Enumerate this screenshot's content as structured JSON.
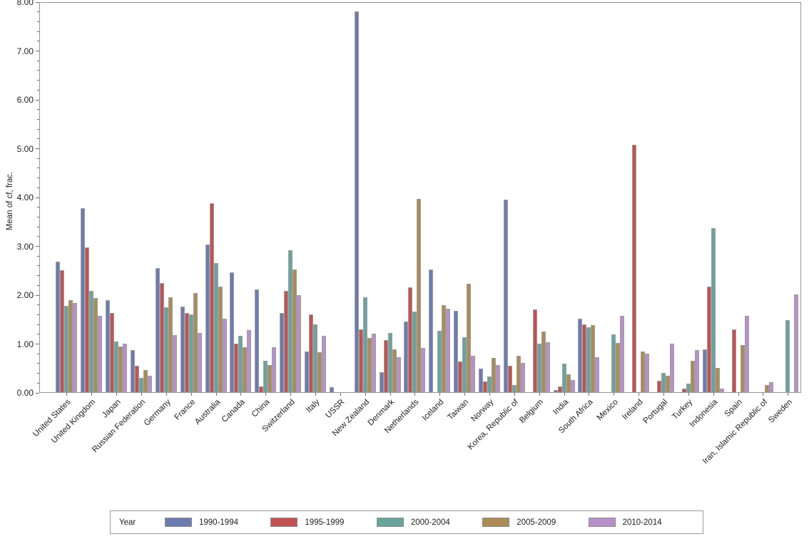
{
  "chart_data": {
    "type": "bar",
    "title": "",
    "xlabel": "",
    "ylabel": "Mean of cf, frac.",
    "ylim": [
      0,
      8
    ],
    "ytick_step": 1,
    "ytick_minor_step": 0.2,
    "ytick_labels": [
      "0.00",
      "1.00",
      "2.00",
      "3.00",
      "4.00",
      "5.00",
      "6.00",
      "7.00",
      "8.00"
    ],
    "grid": false,
    "legend_title": "Year",
    "legend_position": "bottom",
    "categories": [
      "United States",
      "United Kingdom",
      "Japan",
      "Russian Federation",
      "Germany",
      "France",
      "Australia",
      "Canada",
      "China",
      "Switzerland",
      "Italy",
      "USSR",
      "New Zealand",
      "Denmark",
      "Netherlands",
      "Iceland",
      "Taiwan",
      "Norway",
      "Korea, Republic of",
      "Belgium",
      "India",
      "South Africa",
      "Mexico",
      "Ireland",
      "Portugal",
      "Turkey",
      "Indonesia",
      "Spain",
      "Iran, Islamic Republic of",
      "Sweden"
    ],
    "series": [
      {
        "name": "1990-1994",
        "color": "#6C7CB0",
        "values": [
          2.68,
          3.77,
          1.88,
          0.87,
          2.55,
          1.75,
          3.03,
          2.45,
          2.11,
          1.62,
          0.84,
          0.1,
          7.81,
          0.41,
          1.45,
          2.52,
          1.67,
          0.48,
          3.95,
          0,
          0.04,
          1.51,
          0,
          0,
          0,
          0,
          0.88,
          0,
          0,
          0
        ]
      },
      {
        "name": "1995-1999",
        "color": "#C25153",
        "values": [
          2.5,
          2.97,
          1.63,
          0.54,
          2.24,
          1.63,
          3.88,
          1.0,
          0.11,
          2.07,
          1.6,
          0,
          1.28,
          1.07,
          2.15,
          0,
          0.63,
          0.22,
          0.54,
          1.69,
          0.11,
          1.39,
          0,
          5.08,
          0.24,
          0.08,
          2.16,
          1.28,
          0,
          0
        ]
      },
      {
        "name": "2000-2004",
        "color": "#68A49D",
        "values": [
          1.77,
          2.07,
          1.04,
          0.3,
          1.74,
          1.59,
          2.65,
          1.15,
          0.64,
          2.91,
          1.39,
          0,
          1.95,
          1.21,
          1.66,
          1.26,
          1.12,
          0.32,
          0.15,
          0.99,
          0.58,
          1.33,
          1.19,
          0,
          0.39,
          0.18,
          3.36,
          0,
          0,
          1.48
        ]
      },
      {
        "name": "2005-2009",
        "color": "#AC8B57",
        "values": [
          1.89,
          1.93,
          0.93,
          0.46,
          1.95,
          2.03,
          2.16,
          0.92,
          0.55,
          2.51,
          0.82,
          0,
          1.11,
          0.88,
          3.96,
          1.79,
          2.22,
          0.7,
          0.74,
          1.25,
          0.37,
          1.37,
          1.01,
          0.83,
          0.33,
          0.65,
          0.5,
          0.97,
          0.15,
          0
        ]
      },
      {
        "name": "2010-2014",
        "color": "#B890CB",
        "values": [
          1.83,
          1.56,
          0.99,
          0.33,
          1.17,
          1.22,
          1.51,
          1.27,
          0.92,
          1.99,
          1.16,
          0,
          1.2,
          0.72,
          0.91,
          1.71,
          0.75,
          0.56,
          0.6,
          1.02,
          0.25,
          0.72,
          1.56,
          0.79,
          1.0,
          0.87,
          0.08,
          1.56,
          0.2,
          2.0
        ]
      }
    ]
  }
}
